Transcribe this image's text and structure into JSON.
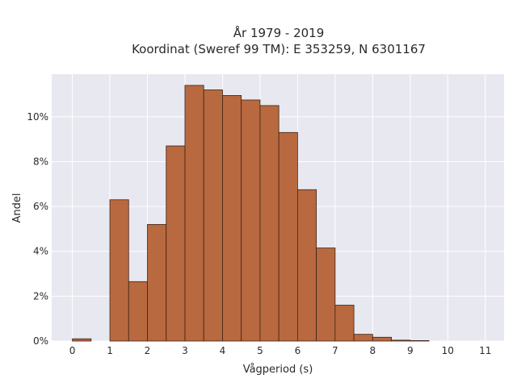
{
  "chart_data": {
    "type": "bar",
    "title_line1": "År 1979 - 2019",
    "title_line2": "Koordinat (Sweref 99 TM): E 353259, N 6301167",
    "xlabel": "Vågperiod (s)",
    "ylabel": "Andel",
    "bin_width": 0.5,
    "bins": [
      {
        "x0": 0.0,
        "value": 0.1
      },
      {
        "x0": 0.5,
        "value": 0.0
      },
      {
        "x0": 1.0,
        "value": 6.3
      },
      {
        "x0": 1.5,
        "value": 2.65
      },
      {
        "x0": 2.0,
        "value": 5.2
      },
      {
        "x0": 2.5,
        "value": 8.7
      },
      {
        "x0": 3.0,
        "value": 11.4
      },
      {
        "x0": 3.5,
        "value": 11.2
      },
      {
        "x0": 4.0,
        "value": 10.95
      },
      {
        "x0": 4.5,
        "value": 10.75
      },
      {
        "x0": 5.0,
        "value": 10.5
      },
      {
        "x0": 5.5,
        "value": 9.3
      },
      {
        "x0": 6.0,
        "value": 6.75
      },
      {
        "x0": 6.5,
        "value": 4.15
      },
      {
        "x0": 7.0,
        "value": 1.6
      },
      {
        "x0": 7.5,
        "value": 0.3
      },
      {
        "x0": 8.0,
        "value": 0.17
      },
      {
        "x0": 8.5,
        "value": 0.04
      },
      {
        "x0": 9.0,
        "value": 0.02
      }
    ],
    "xlim": [
      -0.55,
      11.5
    ],
    "ylim": [
      0,
      11.9
    ],
    "x_ticks": [
      "0",
      "1",
      "2",
      "3",
      "4",
      "5",
      "6",
      "7",
      "8",
      "9",
      "10",
      "11"
    ],
    "y_ticks": [
      {
        "value": 0,
        "label": "0%"
      },
      {
        "value": 2,
        "label": "2%"
      },
      {
        "value": 4,
        "label": "4%"
      },
      {
        "value": 6,
        "label": "6%"
      },
      {
        "value": 8,
        "label": "8%"
      },
      {
        "value": 10,
        "label": "10%"
      }
    ],
    "grid": true,
    "colors": {
      "bar_fill": "#b9693f",
      "bar_edge": "#3a2418",
      "plot_background": "#e8e8f1",
      "grid": "#ffffff"
    }
  }
}
